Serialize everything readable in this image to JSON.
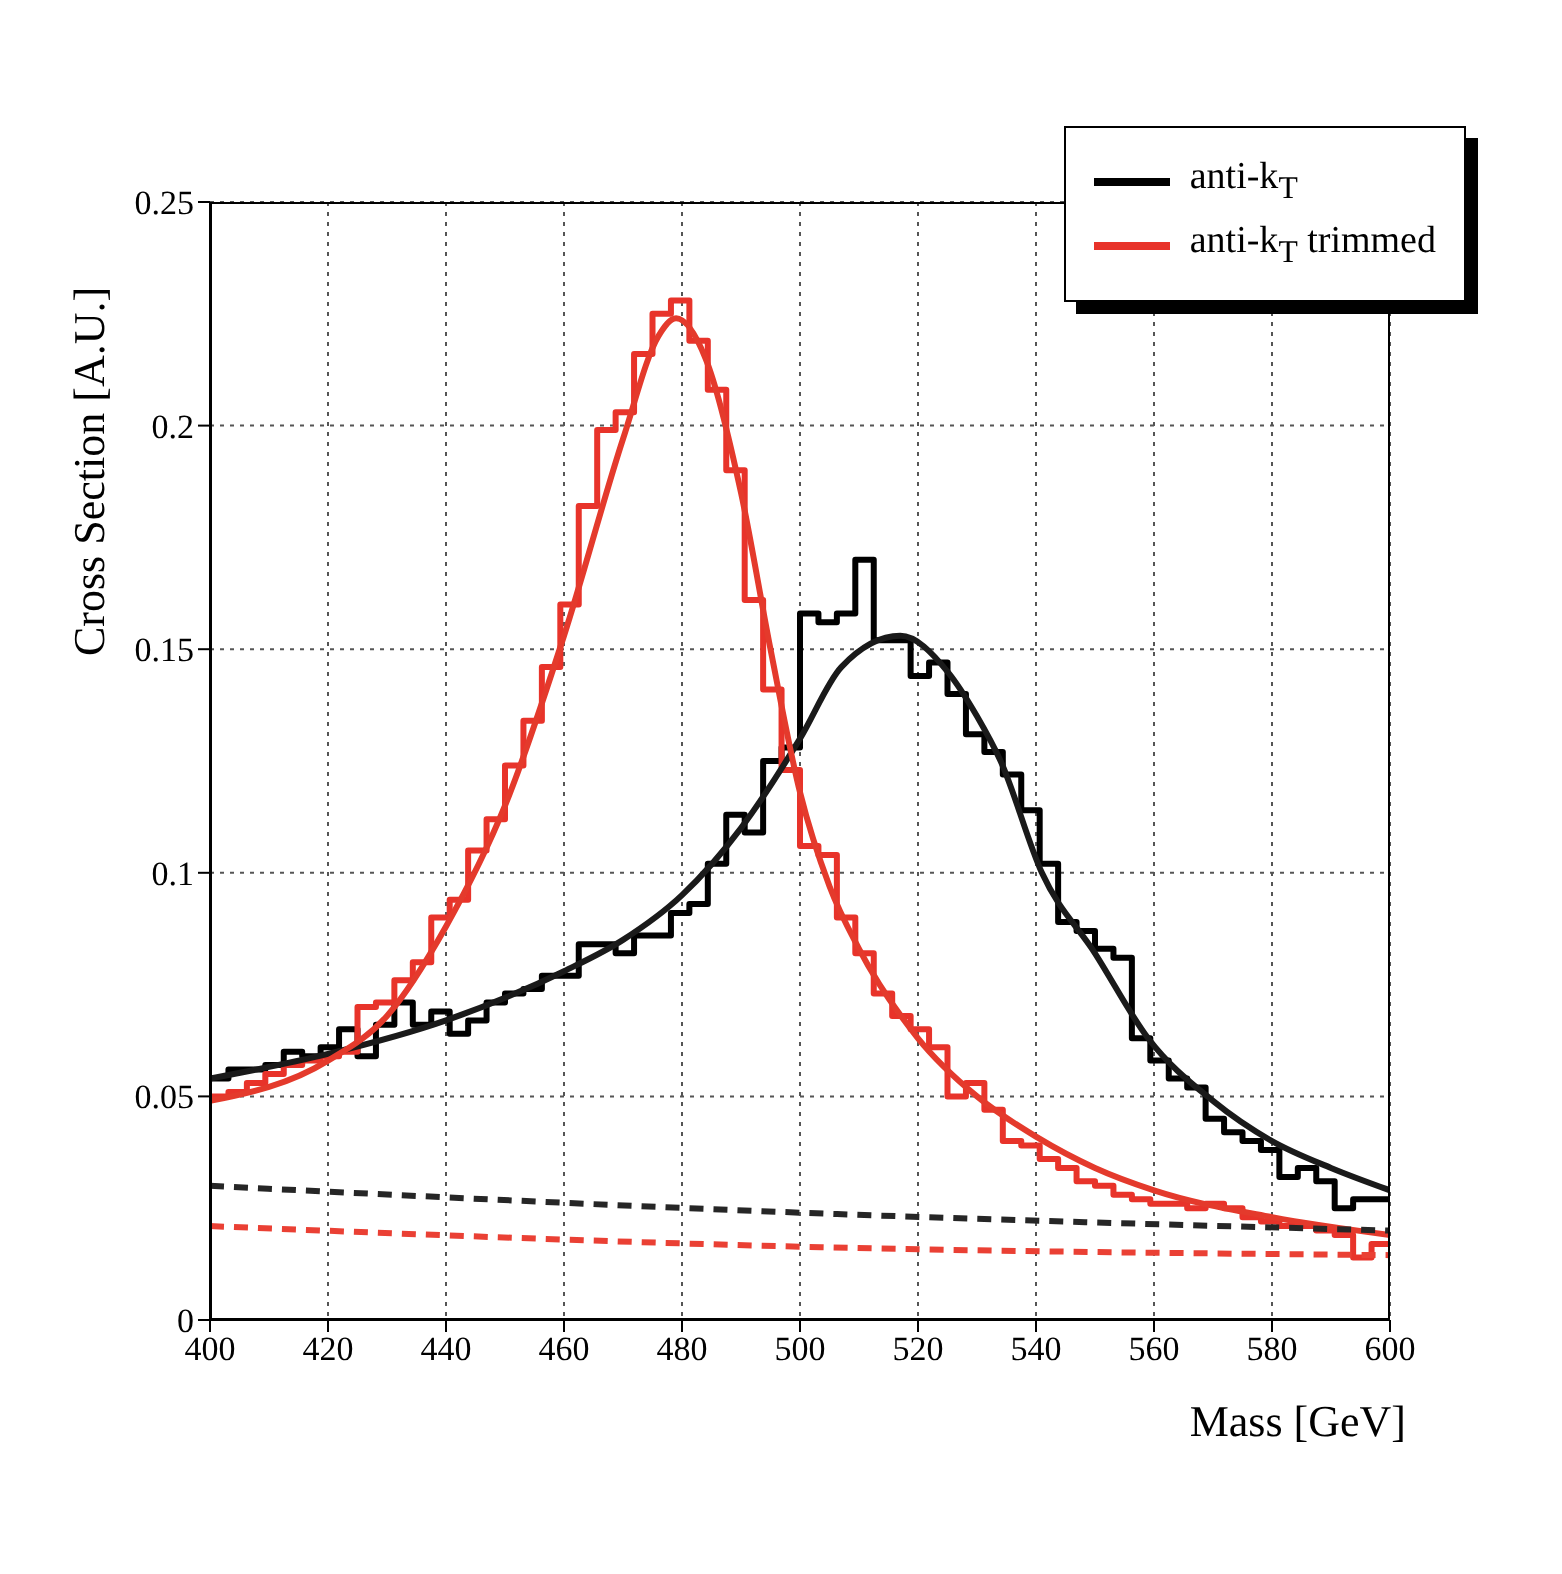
{
  "chart_data": {
    "type": "histogram",
    "xlabel": "Mass [GeV]",
    "ylabel": "Cross Section [A.U.]",
    "bins": [
      400,
      403.125,
      406.25,
      409.375,
      412.5,
      415.625,
      418.75,
      421.875,
      425,
      428.125,
      431.25,
      434.375,
      437.5,
      440.625,
      443.75,
      446.875,
      450,
      453.125,
      456.25,
      459.375,
      462.5,
      465.625,
      468.75,
      471.875,
      475,
      478.125,
      481.25,
      484.375,
      487.5,
      490.625,
      493.75,
      496.875,
      500,
      503.125,
      506.25,
      509.375,
      512.5,
      515.625,
      518.75,
      521.875,
      525,
      528.125,
      531.25,
      534.375,
      537.5,
      540.625,
      543.75,
      546.875,
      550,
      553.125,
      556.25,
      559.375,
      562.5,
      565.625,
      568.75,
      571.875,
      575,
      578.125,
      581.25,
      584.375,
      587.5,
      590.625,
      593.75,
      596.875,
      600
    ],
    "series": [
      {
        "name": "anti-k$_{T}$",
        "color": "#000000",
        "values": [
          0.054,
          0.056,
          0.056,
          0.057,
          0.06,
          0.059,
          0.061,
          0.065,
          0.059,
          0.066,
          0.071,
          0.066,
          0.069,
          0.064,
          0.067,
          0.071,
          0.073,
          0.074,
          0.077,
          0.077,
          0.084,
          0.084,
          0.082,
          0.086,
          0.086,
          0.091,
          0.093,
          0.102,
          0.113,
          0.109,
          0.125,
          0.128,
          0.158,
          0.156,
          0.158,
          0.17,
          0.152,
          0.152,
          0.144,
          0.147,
          0.14,
          0.131,
          0.127,
          0.122,
          0.114,
          0.102,
          0.089,
          0.087,
          0.083,
          0.081,
          0.063,
          0.058,
          0.054,
          0.052,
          0.045,
          0.042,
          0.04,
          0.038,
          0.032,
          0.034,
          0.031,
          0.025,
          0.027,
          0.027
        ]
      },
      {
        "name": "anti-k$_{T}$ trimmed",
        "color": "#e8332a",
        "values": [
          0.05,
          0.051,
          0.053,
          0.055,
          0.057,
          0.058,
          0.059,
          0.06,
          0.07,
          0.071,
          0.076,
          0.08,
          0.09,
          0.094,
          0.105,
          0.112,
          0.124,
          0.134,
          0.146,
          0.16,
          0.182,
          0.199,
          0.203,
          0.216,
          0.225,
          0.228,
          0.219,
          0.208,
          0.19,
          0.161,
          0.141,
          0.123,
          0.106,
          0.104,
          0.09,
          0.082,
          0.073,
          0.068,
          0.065,
          0.061,
          0.05,
          0.053,
          0.047,
          0.04,
          0.039,
          0.036,
          0.034,
          0.031,
          0.03,
          0.028,
          0.027,
          0.026,
          0.026,
          0.025,
          0.026,
          0.025,
          0.023,
          0.022,
          0.021,
          0.021,
          0.02,
          0.019,
          0.014,
          0.017
        ]
      },
      {
        "type": "line",
        "color": "#1a1a1a",
        "x": [
          400,
          420,
          440,
          460,
          470,
          480,
          490,
          500,
          507,
          517,
          525,
          530,
          534,
          541,
          550,
          559,
          570,
          580,
          590,
          600
        ],
        "values": [
          0.054,
          0.0595,
          0.067,
          0.078,
          0.085,
          0.095,
          0.11,
          0.13,
          0.146,
          0.153,
          0.145,
          0.135,
          0.125,
          0.1,
          0.082,
          0.063,
          0.049,
          0.04,
          0.034,
          0.029
        ]
      },
      {
        "type": "line",
        "color": "#e43a2c",
        "x": [
          400,
          420,
          430,
          440,
          450,
          460,
          470,
          476,
          479,
          484,
          490,
          495,
          500,
          505,
          510,
          520,
          530,
          540,
          550,
          560,
          580,
          600
        ],
        "values": [
          0.049,
          0.058,
          0.068,
          0.088,
          0.115,
          0.153,
          0.197,
          0.22,
          0.224,
          0.215,
          0.185,
          0.15,
          0.118,
          0.097,
          0.083,
          0.063,
          0.05,
          0.041,
          0.034,
          0.029,
          0.023,
          0.019
        ]
      },
      {
        "type": "line",
        "line_style": "dashed",
        "color": "#262626",
        "x": [
          400,
          500,
          600
        ],
        "values": [
          0.03,
          0.024,
          0.02
        ]
      },
      {
        "type": "line",
        "line_style": "dashed",
        "color": "#ea4034",
        "x": [
          400,
          500,
          600
        ],
        "values": [
          0.021,
          0.0164,
          0.0145
        ]
      }
    ],
    "xlim": [
      400,
      600
    ],
    "xticks": [
      400,
      420,
      440,
      460,
      480,
      500,
      520,
      540,
      560,
      580,
      600
    ],
    "ylim": [
      0,
      0.25
    ],
    "yticks": [
      0,
      0.05,
      0.1,
      0.15,
      0.2,
      0.25
    ],
    "grid": true,
    "legend": "top right"
  }
}
